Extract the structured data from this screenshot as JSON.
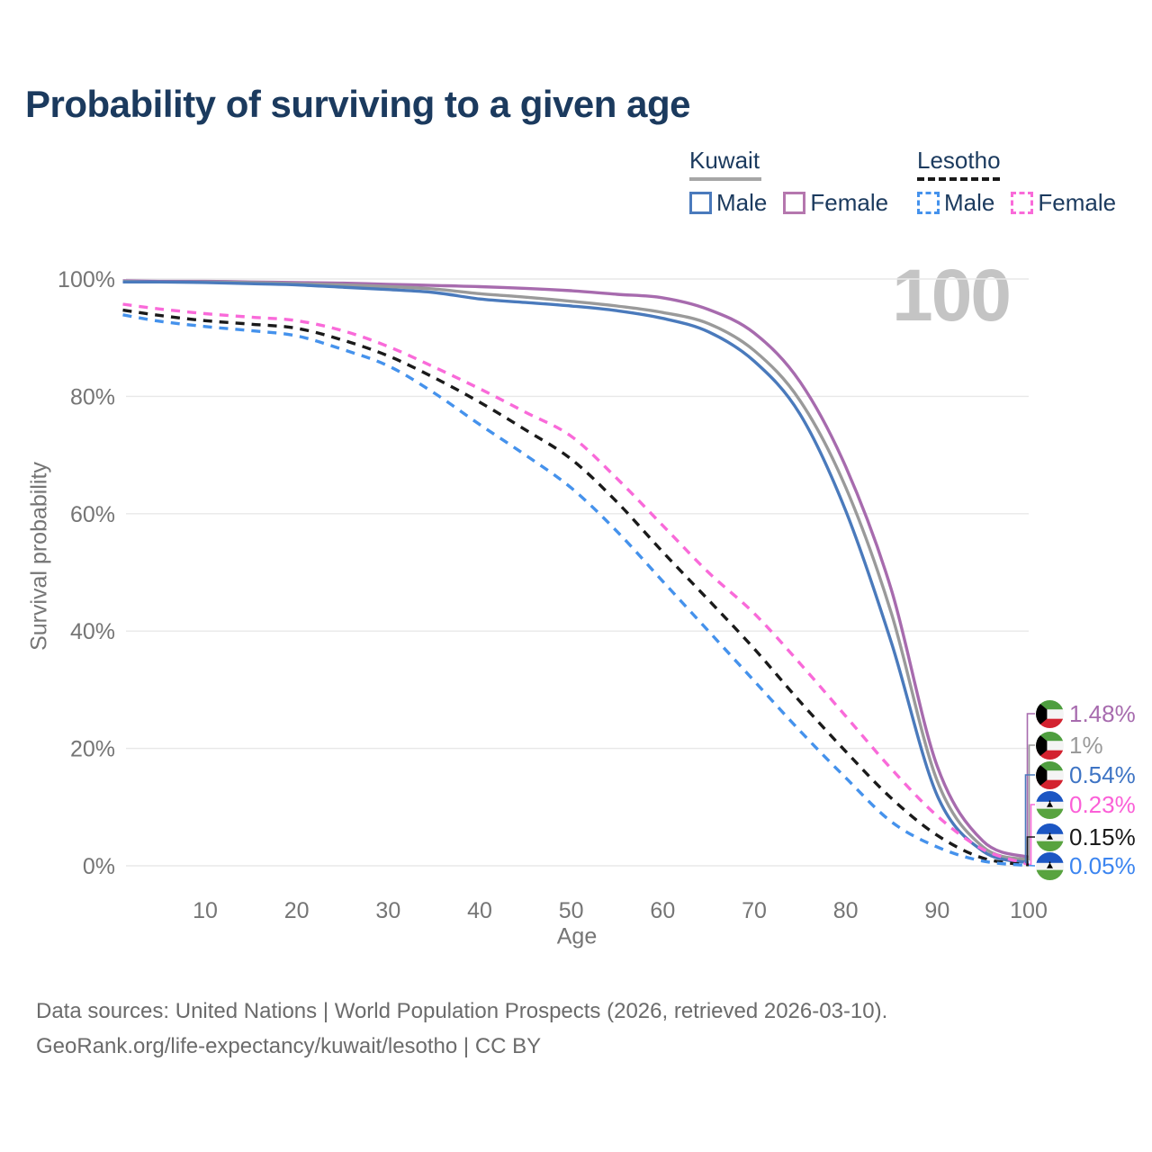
{
  "title": "Probability of surviving to a given age",
  "watermark": "100",
  "legend": {
    "groups": [
      {
        "country": "Kuwait",
        "line_style": "solid",
        "line_color": "#a6a6a6",
        "items": [
          {
            "label": "Male",
            "color": "#4a7abc"
          },
          {
            "label": "Female",
            "color": "#b577ae"
          }
        ]
      },
      {
        "country": "Lesotho",
        "line_style": "dashed",
        "line_color": "#1a1a1a",
        "items": [
          {
            "label": "Male",
            "color": "#4592ec"
          },
          {
            "label": "Female",
            "color": "#f96ad9"
          }
        ]
      }
    ]
  },
  "chart_data": {
    "type": "line",
    "title": "Probability of surviving to a given age",
    "xlabel": "Age",
    "ylabel": "Survival probability",
    "xlim": [
      1,
      100
    ],
    "ylim": [
      0,
      100
    ],
    "x_ticks": [
      10,
      20,
      30,
      40,
      50,
      60,
      70,
      80,
      90,
      100
    ],
    "y_ticks": [
      0,
      20,
      40,
      60,
      80,
      100
    ],
    "y_tick_suffix": "%",
    "grid": "horizontal-only",
    "legend_position": "top-right",
    "series": [
      {
        "name": "Kuwait Female",
        "country": "Kuwait",
        "sex": "Female",
        "style": "solid",
        "color": "#a76bae",
        "flag_icon": "kuwait-flag-icon",
        "end_label": "1.48%",
        "end_label_color": "#a76bae",
        "points": [
          [
            1,
            99.7
          ],
          [
            5,
            99.6
          ],
          [
            10,
            99.6
          ],
          [
            15,
            99.5
          ],
          [
            20,
            99.4
          ],
          [
            25,
            99.3
          ],
          [
            30,
            99.1
          ],
          [
            35,
            98.9
          ],
          [
            40,
            98.7
          ],
          [
            45,
            98.4
          ],
          [
            50,
            98.0
          ],
          [
            55,
            97.4
          ],
          [
            60,
            96.8
          ],
          [
            65,
            94.8
          ],
          [
            70,
            90.8
          ],
          [
            75,
            82.5
          ],
          [
            80,
            68.0
          ],
          [
            85,
            47.0
          ],
          [
            90,
            17.0
          ],
          [
            95,
            4.2
          ],
          [
            100,
            1.48
          ]
        ]
      },
      {
        "name": "Kuwait",
        "country": "Kuwait",
        "sex": "Both",
        "style": "solid",
        "color": "#9a9a9a",
        "flag_icon": "kuwait-flag-icon",
        "end_label": "1%",
        "end_label_color": "#9a9a9a",
        "points": [
          [
            1,
            99.6
          ],
          [
            5,
            99.5
          ],
          [
            10,
            99.5
          ],
          [
            15,
            99.4
          ],
          [
            20,
            99.2
          ],
          [
            25,
            99.0
          ],
          [
            30,
            98.7
          ],
          [
            35,
            98.3
          ],
          [
            40,
            97.5
          ],
          [
            45,
            96.9
          ],
          [
            50,
            96.2
          ],
          [
            55,
            95.4
          ],
          [
            60,
            94.3
          ],
          [
            65,
            92.4
          ],
          [
            70,
            87.8
          ],
          [
            75,
            79.3
          ],
          [
            80,
            64.5
          ],
          [
            85,
            43.0
          ],
          [
            90,
            14.5
          ],
          [
            95,
            3.2
          ],
          [
            100,
            1.0
          ]
        ]
      },
      {
        "name": "Kuwait Male",
        "country": "Kuwait",
        "sex": "Male",
        "style": "solid",
        "color": "#4a7abc",
        "flag_icon": "kuwait-flag-icon",
        "end_label": "0.54%",
        "end_label_color": "#3e74c4",
        "points": [
          [
            1,
            99.5
          ],
          [
            5,
            99.5
          ],
          [
            10,
            99.4
          ],
          [
            15,
            99.2
          ],
          [
            20,
            99.0
          ],
          [
            25,
            98.6
          ],
          [
            30,
            98.2
          ],
          [
            35,
            97.7
          ],
          [
            40,
            96.6
          ],
          [
            45,
            96.0
          ],
          [
            50,
            95.4
          ],
          [
            55,
            94.6
          ],
          [
            60,
            93.3
          ],
          [
            65,
            91.0
          ],
          [
            70,
            86.0
          ],
          [
            75,
            77.0
          ],
          [
            80,
            60.5
          ],
          [
            85,
            38.0
          ],
          [
            90,
            12.0
          ],
          [
            95,
            2.5
          ],
          [
            100,
            0.54
          ]
        ]
      },
      {
        "name": "Lesotho Female",
        "country": "Lesotho",
        "sex": "Female",
        "style": "dashed",
        "color": "#f96ad9",
        "flag_icon": "lesotho-flag-icon",
        "end_label": "0.23%",
        "end_label_color": "#fb5fd7",
        "points": [
          [
            1,
            95.7
          ],
          [
            5,
            94.9
          ],
          [
            10,
            94.1
          ],
          [
            15,
            93.5
          ],
          [
            20,
            92.9
          ],
          [
            25,
            91.2
          ],
          [
            30,
            88.5
          ],
          [
            35,
            85.0
          ],
          [
            40,
            81.3
          ],
          [
            45,
            77.3
          ],
          [
            50,
            73.2
          ],
          [
            55,
            66.0
          ],
          [
            60,
            58.0
          ],
          [
            65,
            50.0
          ],
          [
            70,
            43.0
          ],
          [
            75,
            34.5
          ],
          [
            80,
            25.5
          ],
          [
            85,
            16.5
          ],
          [
            90,
            8.5
          ],
          [
            95,
            2.8
          ],
          [
            100,
            0.23
          ]
        ]
      },
      {
        "name": "Lesotho",
        "country": "Lesotho",
        "sex": "Both",
        "style": "dashed",
        "color": "#1a1a1a",
        "flag_icon": "lesotho-flag-icon",
        "end_label": "0.15%",
        "end_label_color": "#1a1a1a",
        "points": [
          [
            1,
            94.7
          ],
          [
            5,
            93.8
          ],
          [
            10,
            92.9
          ],
          [
            15,
            92.3
          ],
          [
            20,
            91.6
          ],
          [
            25,
            89.6
          ],
          [
            30,
            86.9
          ],
          [
            35,
            83.2
          ],
          [
            40,
            79.0
          ],
          [
            45,
            74.3
          ],
          [
            50,
            69.3
          ],
          [
            55,
            62.0
          ],
          [
            60,
            53.5
          ],
          [
            65,
            45.3
          ],
          [
            70,
            37.0
          ],
          [
            75,
            28.0
          ],
          [
            80,
            19.5
          ],
          [
            85,
            11.5
          ],
          [
            90,
            5.2
          ],
          [
            95,
            1.3
          ],
          [
            100,
            0.15
          ]
        ]
      },
      {
        "name": "Lesotho Male",
        "country": "Lesotho",
        "sex": "Male",
        "style": "dashed",
        "color": "#4592ec",
        "flag_icon": "lesotho-flag-icon",
        "end_label": "0.05%",
        "end_label_color": "#3c85f0",
        "points": [
          [
            1,
            93.9
          ],
          [
            5,
            92.8
          ],
          [
            10,
            91.9
          ],
          [
            15,
            91.2
          ],
          [
            20,
            90.3
          ],
          [
            25,
            88.0
          ],
          [
            30,
            85.2
          ],
          [
            35,
            80.6
          ],
          [
            40,
            75.2
          ],
          [
            45,
            70.0
          ],
          [
            50,
            64.4
          ],
          [
            55,
            57.0
          ],
          [
            60,
            48.5
          ],
          [
            65,
            40.0
          ],
          [
            70,
            31.5
          ],
          [
            75,
            23.0
          ],
          [
            80,
            15.0
          ],
          [
            85,
            7.5
          ],
          [
            90,
            3.2
          ],
          [
            95,
            0.8
          ],
          [
            100,
            0.05
          ]
        ]
      }
    ]
  },
  "footer": {
    "line1": "Data sources: United Nations | World Population Prospects (2026, retrieved 2026-03-10).",
    "line2": "GeoRank.org/life-expectancy/kuwait/lesotho | CC BY"
  }
}
